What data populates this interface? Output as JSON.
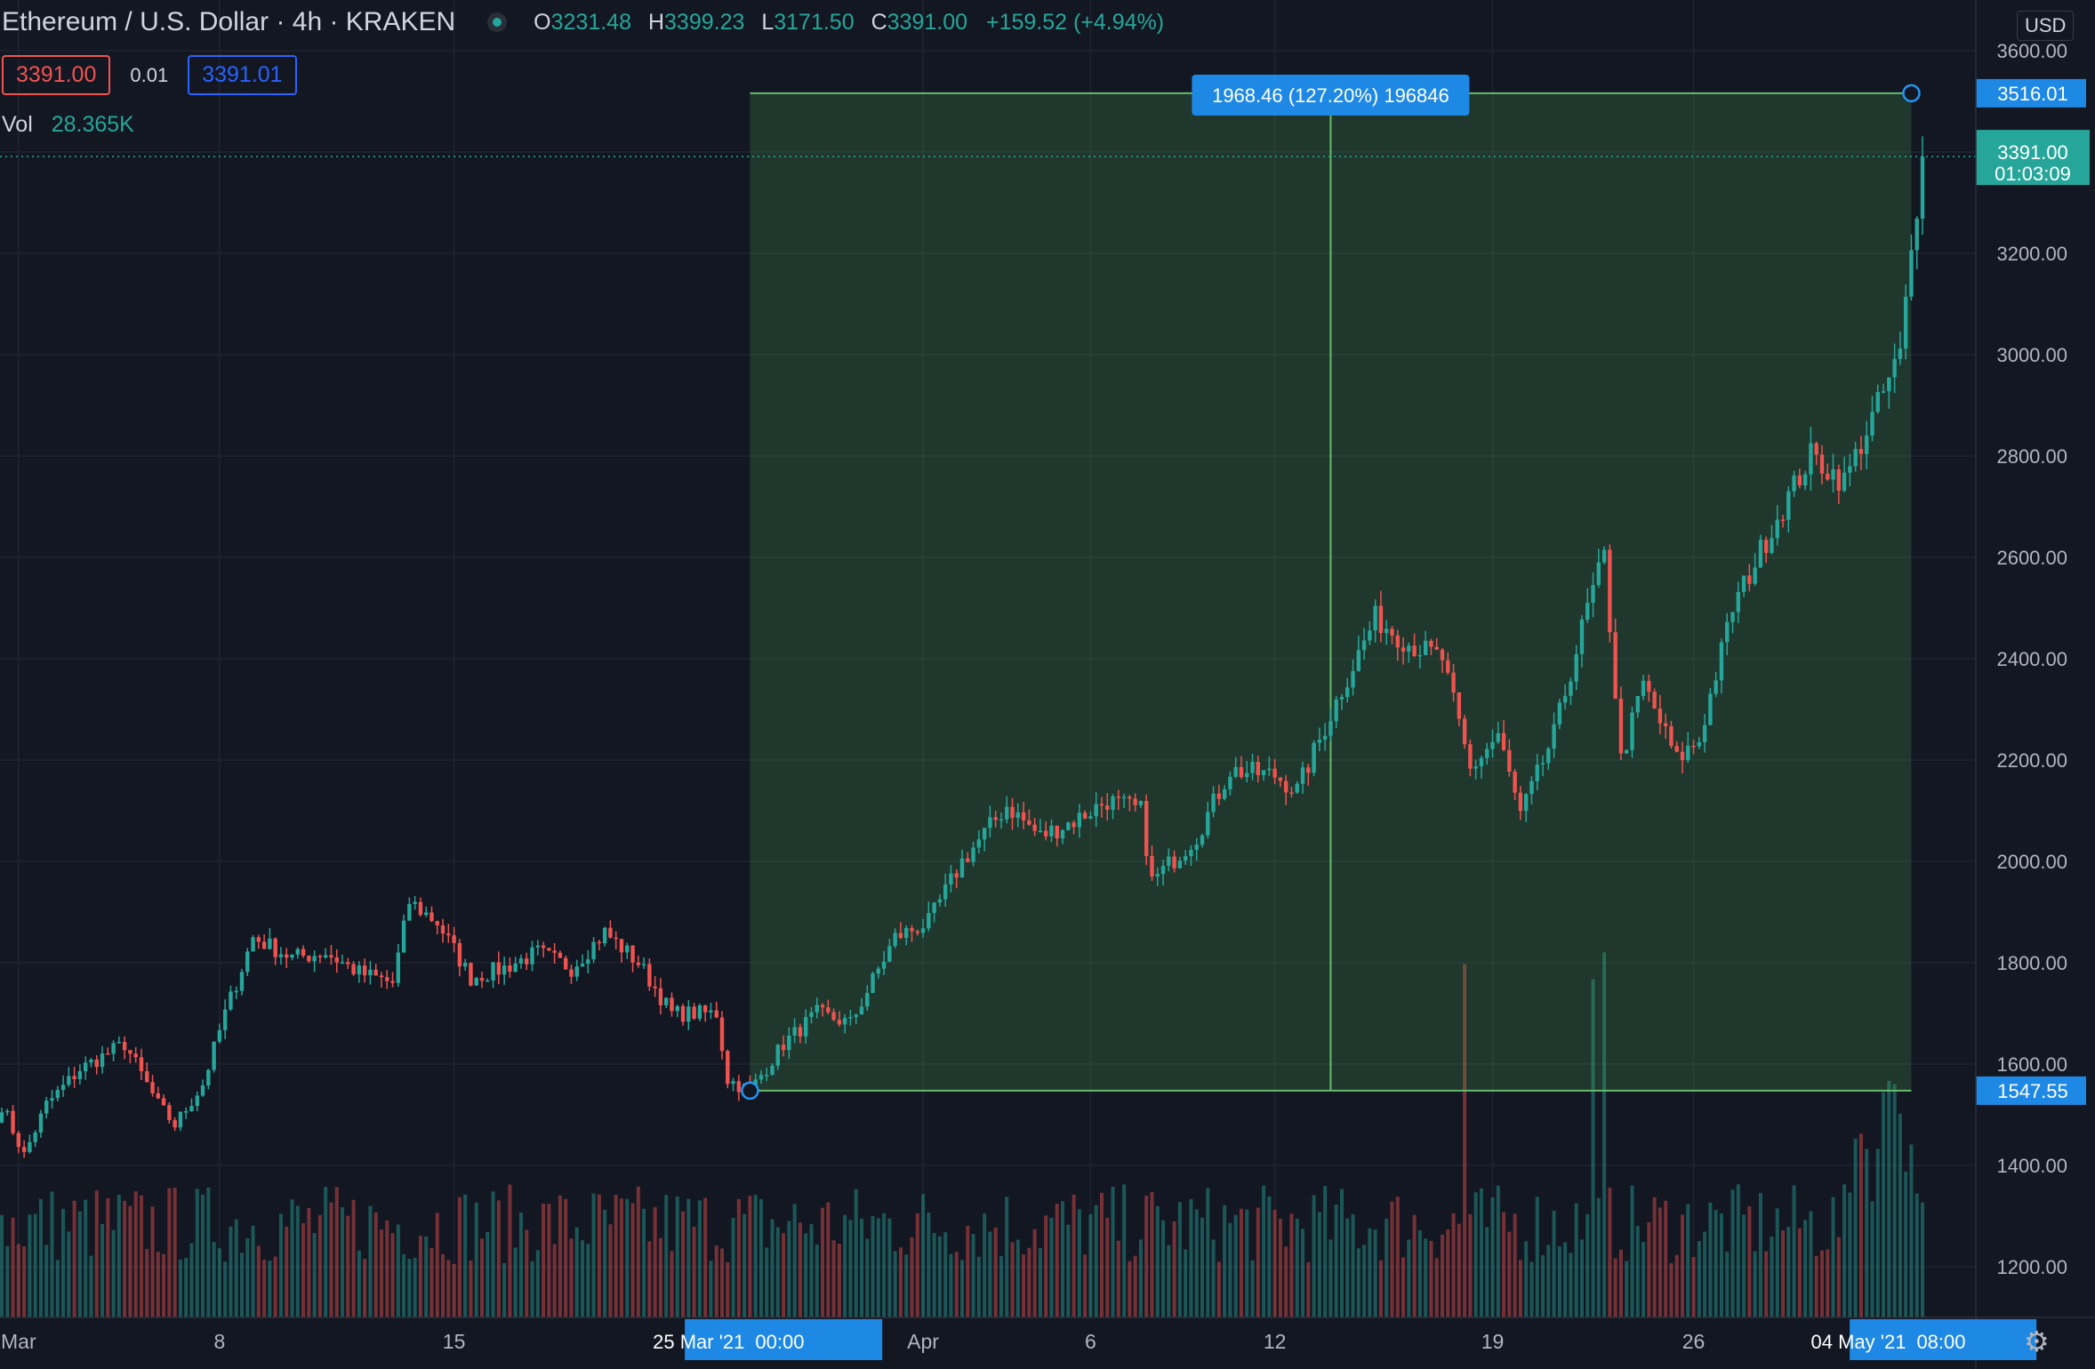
{
  "header": {
    "title": "Ethereum / U.S. Dollar · 4h · KRAKEN",
    "ohlc": [
      {
        "k": "O",
        "v": "3231.48"
      },
      {
        "k": "H",
        "v": "3399.23"
      },
      {
        "k": "L",
        "v": "3171.50"
      },
      {
        "k": "C",
        "v": "3391.00"
      }
    ],
    "change": "+159.52 (+4.94%)"
  },
  "trade": {
    "sell": "3391.00",
    "spread": "0.01",
    "buy": "3391.01"
  },
  "volume": {
    "label": "Vol",
    "value": "28.365K"
  },
  "currency": "USD",
  "colors": {
    "background": "#131722",
    "up": "#26a69a",
    "down": "#ef5350",
    "measure_fill": "#4caf50",
    "label_blue": "#1e88e5"
  },
  "chart_data": {
    "type": "candlestick",
    "ylim": [
      1100,
      3700
    ],
    "y_ticks": [
      "1200.00",
      "1400.00",
      "1600.00",
      "1800.00",
      "2000.00",
      "2200.00",
      "2400.00",
      "2600.00",
      "2800.00",
      "3000.00",
      "3200.00",
      "3400.00",
      "3600.00"
    ],
    "x_ticks": [
      "Mar",
      "8",
      "15",
      "Apr",
      "6",
      "12",
      "19",
      "26"
    ],
    "x_ticks_index": [
      3,
      39,
      81,
      165,
      195,
      228,
      267,
      303
    ],
    "bar_count": 345,
    "price_anchors": [
      [
        0,
        1520
      ],
      [
        4,
        1420
      ],
      [
        8,
        1520
      ],
      [
        14,
        1590
      ],
      [
        22,
        1640
      ],
      [
        28,
        1520
      ],
      [
        31,
        1480
      ],
      [
        36,
        1560
      ],
      [
        40,
        1700
      ],
      [
        45,
        1850
      ],
      [
        52,
        1810
      ],
      [
        58,
        1820
      ],
      [
        64,
        1780
      ],
      [
        70,
        1760
      ],
      [
        73,
        1920
      ],
      [
        78,
        1880
      ],
      [
        84,
        1770
      ],
      [
        90,
        1790
      ],
      [
        96,
        1820
      ],
      [
        102,
        1790
      ],
      [
        108,
        1860
      ],
      [
        114,
        1800
      ],
      [
        120,
        1700
      ],
      [
        128,
        1700
      ],
      [
        130,
        1570
      ],
      [
        134,
        1547.55
      ],
      [
        140,
        1640
      ],
      [
        146,
        1700
      ],
      [
        152,
        1680
      ],
      [
        160,
        1850
      ],
      [
        166,
        1880
      ],
      [
        172,
        2000
      ],
      [
        180,
        2110
      ],
      [
        186,
        2050
      ],
      [
        192,
        2080
      ],
      [
        198,
        2120
      ],
      [
        204,
        2100
      ],
      [
        206,
        1960
      ],
      [
        214,
        2050
      ],
      [
        220,
        2180
      ],
      [
        228,
        2170
      ],
      [
        232,
        2140
      ],
      [
        240,
        2340
      ],
      [
        246,
        2480
      ],
      [
        252,
        2430
      ],
      [
        258,
        2400
      ],
      [
        263,
        2180
      ],
      [
        268,
        2250
      ],
      [
        272,
        2090
      ],
      [
        278,
        2250
      ],
      [
        284,
        2500
      ],
      [
        287,
        2600
      ],
      [
        290,
        2200
      ],
      [
        294,
        2350
      ],
      [
        300,
        2200
      ],
      [
        304,
        2240
      ],
      [
        310,
        2500
      ],
      [
        318,
        2680
      ],
      [
        324,
        2800
      ],
      [
        330,
        2750
      ],
      [
        336,
        2900
      ],
      [
        340,
        3000
      ],
      [
        342,
        3200
      ],
      [
        344,
        3390
      ]
    ],
    "current": {
      "price": "3391.00",
      "countdown": "01:03:09",
      "value": 3391.0
    },
    "measure": {
      "start_index": 134,
      "end_index": 342,
      "start_price": 1547.55,
      "end_price": 3516.01,
      "start_label": "1547.55",
      "end_label": "3516.01",
      "summary": "1968.46 (127.20%) 196846",
      "start_date": "25 Mar '21",
      "start_time": "00:00",
      "end_date": "04 May '21",
      "end_time": "08:00"
    }
  }
}
